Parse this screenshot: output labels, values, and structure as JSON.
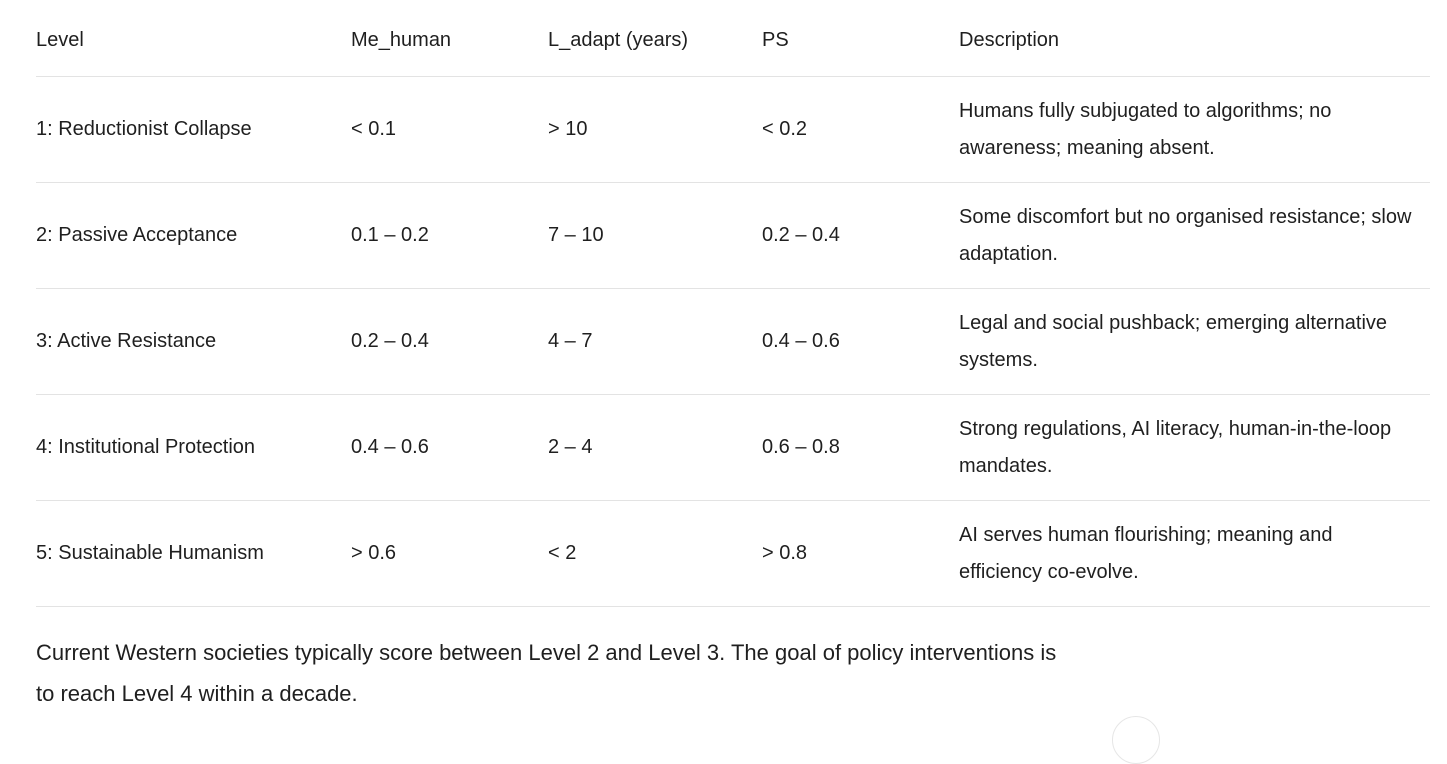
{
  "table": {
    "headers": [
      "Level",
      "Me_human",
      "L_adapt (years)",
      "PS",
      "Description"
    ],
    "rows": [
      [
        "1: Reductionist Collapse",
        "< 0.1",
        "> 10",
        "< 0.2",
        "Humans fully subjugated to algorithms; no awareness; meaning absent."
      ],
      [
        "2: Passive Acceptance",
        "0.1 – 0.2",
        "7 – 10",
        "0.2 – 0.4",
        "Some discomfort but no organised resistance; slow adaptation."
      ],
      [
        "3: Active Resistance",
        "0.2 – 0.4",
        "4 – 7",
        "0.4 – 0.6",
        "Legal and social pushback; emerging alternative systems."
      ],
      [
        "4: Institutional Protection",
        "0.4 – 0.6",
        "2 – 4",
        "0.6 – 0.8",
        "Strong regulations, AI literacy, human-in-the-loop mandates."
      ],
      [
        "5: Sustainable Humanism",
        "> 0.6",
        "< 2",
        "> 0.8",
        "AI serves human flourishing; meaning and efficiency co-evolve."
      ]
    ]
  },
  "note": "Current Western societies typically score between Level 2 and Level 3. The goal of policy interventions is to reach Level 4 within a decade."
}
